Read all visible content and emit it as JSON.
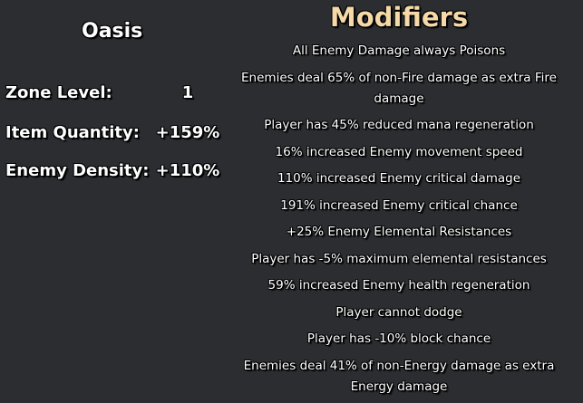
{
  "zone": {
    "name": "Oasis",
    "stats": [
      {
        "label": "Zone Level:",
        "value": "1"
      },
      {
        "label": "Item Quantity:",
        "value": "+159%"
      },
      {
        "label": "Enemy Density:",
        "value": "+110%"
      }
    ]
  },
  "modifiers": {
    "title": "Modifiers",
    "title_color": "#f6d9a8",
    "items": [
      "All Enemy Damage always Poisons",
      "Enemies deal 65% of non-Fire damage as extra Fire damage",
      "Player has 45% reduced mana regeneration",
      "16% increased Enemy movement speed",
      "110% increased Enemy critical damage",
      "191% increased Enemy critical chance",
      "+25% Enemy Elemental Resistances",
      "Player has -5% maximum elemental resistances",
      "59% increased Enemy health regeneration",
      "Player cannot dodge",
      "Player has -10% block chance",
      "Enemies deal 41% of non-Energy damage as extra Energy damage"
    ]
  }
}
